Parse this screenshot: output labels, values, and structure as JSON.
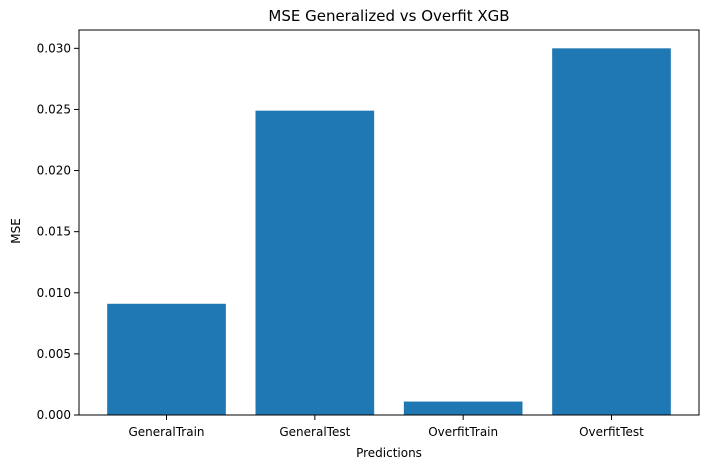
{
  "chart_data": {
    "type": "bar",
    "title": "MSE Generalized vs Overfit XGB",
    "xlabel": "Predictions",
    "ylabel": "MSE",
    "categories": [
      "GeneralTrain",
      "GeneralTest",
      "OverfitTrain",
      "OverfitTest"
    ],
    "values": [
      0.0091,
      0.0249,
      0.0011,
      0.03
    ],
    "ylim": [
      0,
      0.0315
    ],
    "yticks": [
      0.0,
      0.005,
      0.01,
      0.015,
      0.02,
      0.025,
      0.03
    ],
    "ytick_labels": [
      "0.000",
      "0.005",
      "0.010",
      "0.015",
      "0.020",
      "0.025",
      "0.030"
    ],
    "bar_color": "#1f77b4",
    "grid": false,
    "legend": "none"
  }
}
